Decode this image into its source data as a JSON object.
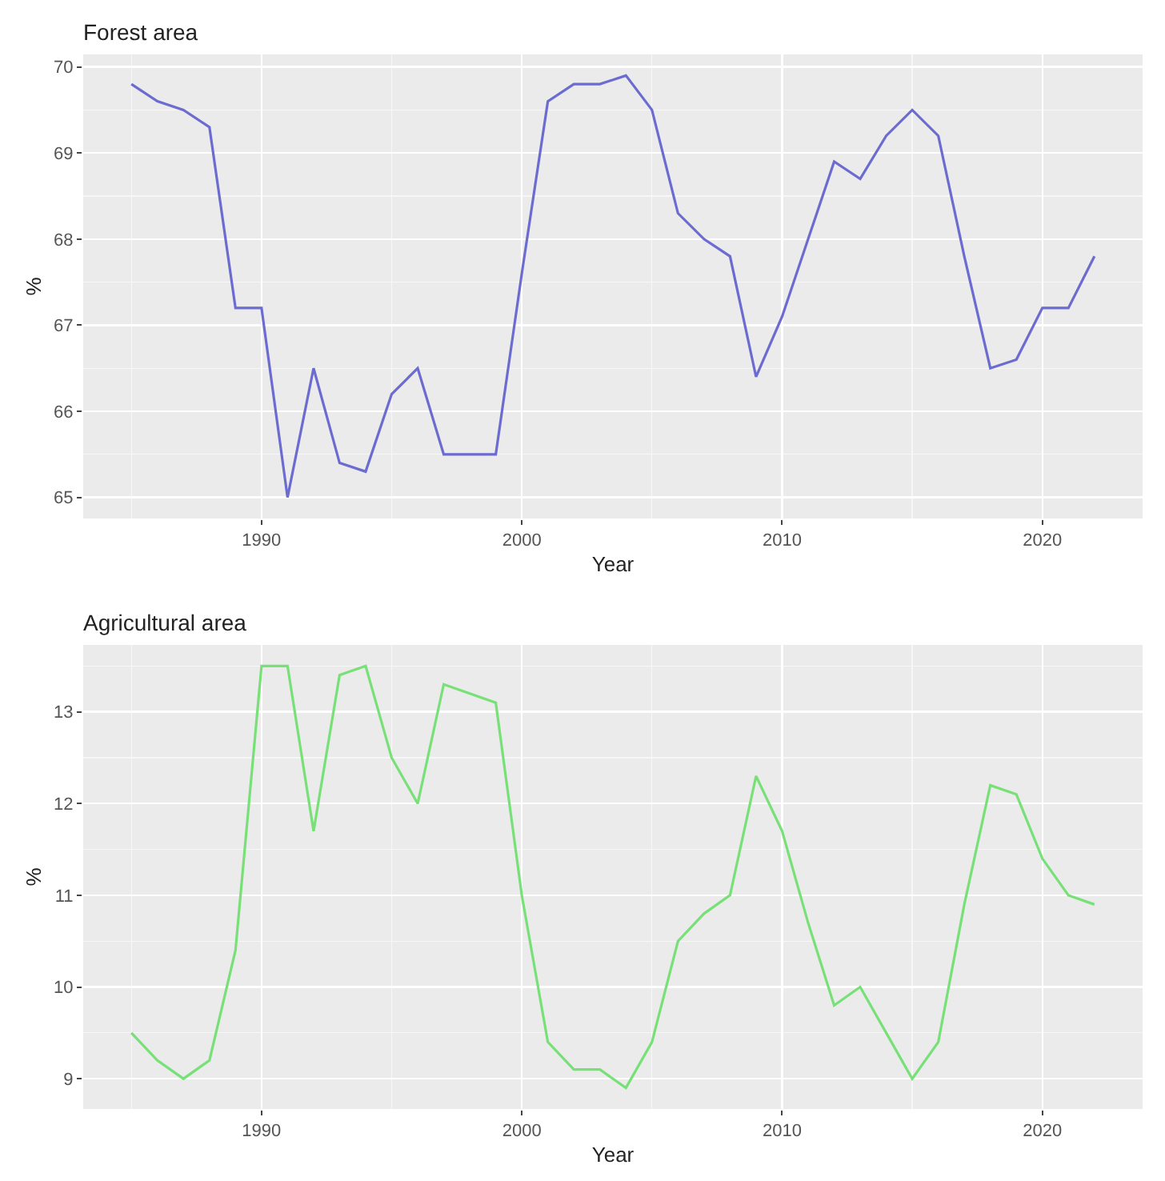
{
  "chart_data": [
    {
      "type": "line",
      "title": "Forest area",
      "xlabel": "Year",
      "ylabel": "%",
      "x": [
        1985,
        1986,
        1987,
        1988,
        1989,
        1990,
        1991,
        1992,
        1993,
        1994,
        1995,
        1996,
        1997,
        1998,
        1999,
        2000,
        2001,
        2002,
        2003,
        2004,
        2005,
        2006,
        2007,
        2008,
        2009,
        2010,
        2011,
        2012,
        2013,
        2014,
        2015,
        2016,
        2017,
        2018,
        2019,
        2020,
        2021,
        2022
      ],
      "series": [
        {
          "color": "#6b6bd0",
          "values": [
            69.8,
            69.6,
            69.5,
            69.3,
            67.2,
            67.2,
            65.0,
            66.5,
            65.4,
            65.3,
            66.2,
            66.5,
            65.5,
            65.5,
            65.5,
            67.6,
            69.6,
            69.8,
            69.8,
            69.9,
            69.5,
            68.3,
            68.0,
            67.8,
            66.4,
            67.1,
            68.0,
            68.9,
            68.7,
            69.2,
            69.5,
            69.2,
            67.8,
            66.5,
            66.6,
            67.2,
            67.2,
            67.8
          ]
        }
      ],
      "xlim": [
        1983.15,
        2023.85
      ],
      "xticks": [
        1990,
        2000,
        2010,
        2020
      ],
      "ylim": [
        64.755,
        70.145
      ],
      "yticks": [
        65,
        66,
        67,
        68,
        69,
        70
      ],
      "grid": true,
      "marker": "none",
      "line_style": "solid"
    },
    {
      "type": "line",
      "title": "Agricultural area",
      "xlabel": "Year",
      "ylabel": "%",
      "x": [
        1985,
        1986,
        1987,
        1988,
        1989,
        1990,
        1991,
        1992,
        1993,
        1994,
        1995,
        1996,
        1997,
        1998,
        1999,
        2000,
        2001,
        2002,
        2003,
        2004,
        2005,
        2006,
        2007,
        2008,
        2009,
        2010,
        2011,
        2012,
        2013,
        2014,
        2015,
        2016,
        2017,
        2018,
        2019,
        2020,
        2021,
        2022
      ],
      "series": [
        {
          "color": "#77e077",
          "values": [
            9.5,
            9.2,
            9.0,
            9.2,
            10.4,
            13.5,
            13.5,
            11.7,
            13.4,
            13.5,
            12.5,
            12.0,
            13.3,
            13.2,
            13.1,
            11.0,
            9.4,
            9.1,
            9.1,
            8.9,
            9.4,
            10.5,
            10.8,
            11.0,
            12.3,
            11.7,
            10.7,
            9.8,
            10.0,
            9.5,
            9.0,
            9.4,
            10.9,
            12.2,
            12.1,
            11.4,
            11.0,
            10.9
          ]
        }
      ],
      "xlim": [
        1983.15,
        2023.85
      ],
      "xticks": [
        1990,
        2000,
        2010,
        2020
      ],
      "ylim": [
        8.67,
        13.73
      ],
      "yticks": [
        9,
        10,
        11,
        12,
        13
      ],
      "grid": true,
      "marker": "none",
      "line_style": "solid"
    }
  ]
}
